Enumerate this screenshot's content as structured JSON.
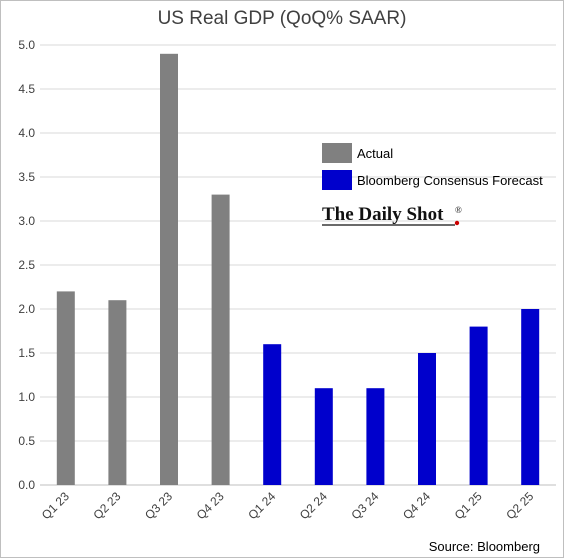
{
  "title": "US Real GDP (QoQ% SAAR)",
  "source": "Source: Bloomberg",
  "logo": "The Daily Shot",
  "logo_mark": "®",
  "colors": {
    "actual": "#808080",
    "forecast": "#0000cc",
    "grid": "#d9d9d9",
    "axis": "#bfbfbf",
    "logo_dot": "#cc0000"
  },
  "chart_data": {
    "type": "bar",
    "title": "US Real GDP (QoQ% SAAR)",
    "categories": [
      "Q1 23",
      "Q2 23",
      "Q3 23",
      "Q4 23",
      "Q1 24",
      "Q2 24",
      "Q3 24",
      "Q4 24",
      "Q1 25",
      "Q2 25"
    ],
    "series": [
      {
        "name": "Actual",
        "color": "#808080",
        "values": [
          2.2,
          2.1,
          4.9,
          3.3,
          null,
          null,
          null,
          null,
          null,
          null
        ]
      },
      {
        "name": "Bloomberg Consensus Forecast",
        "color": "#0000cc",
        "values": [
          null,
          null,
          null,
          null,
          1.6,
          1.1,
          1.1,
          1.5,
          1.8,
          2.0
        ]
      }
    ],
    "ylim": [
      0,
      5
    ],
    "yticks": [
      "0.0",
      "0.5",
      "1.0",
      "1.5",
      "2.0",
      "2.5",
      "3.0",
      "3.5",
      "4.0",
      "4.5",
      "5.0"
    ],
    "grid": true,
    "legend_position": "top-right",
    "xlabel": "",
    "ylabel": ""
  }
}
